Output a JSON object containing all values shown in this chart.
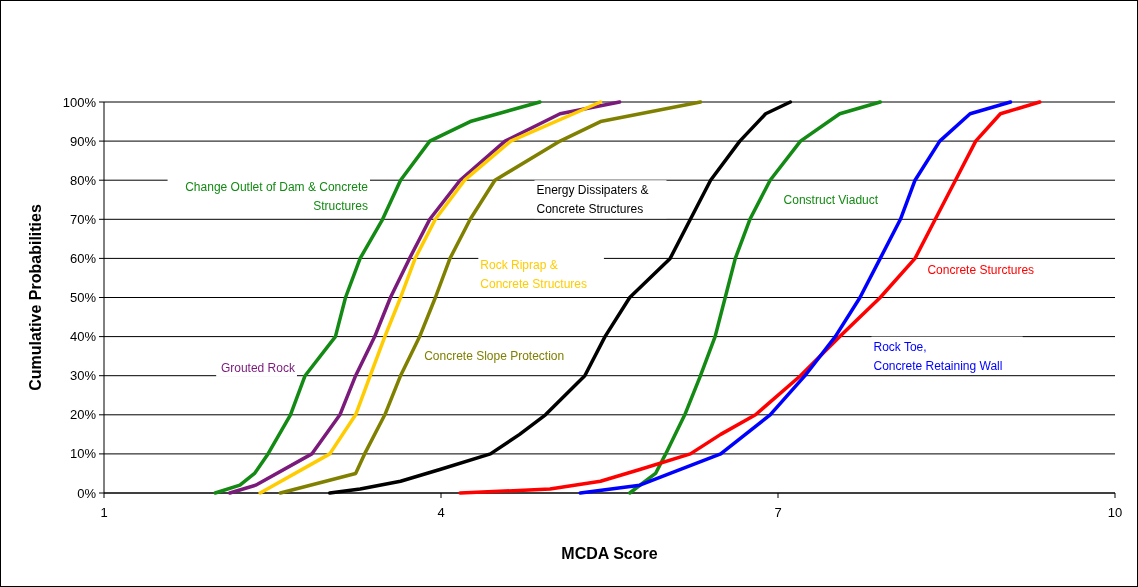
{
  "chart_data": {
    "type": "line",
    "xlabel": "MCDA Score",
    "ylabel": "Cumulative Probabilities",
    "xlim": [
      1,
      10
    ],
    "xticks": [
      1,
      4,
      7,
      10
    ],
    "ylim": [
      0,
      100
    ],
    "yticks": [
      {
        "value": 0,
        "label": "0%"
      },
      {
        "value": 10,
        "label": "10%"
      },
      {
        "value": 20,
        "label": "20%"
      },
      {
        "value": 30,
        "label": "30%"
      },
      {
        "value": 40,
        "label": "40%"
      },
      {
        "value": 50,
        "label": "50%"
      },
      {
        "value": 60,
        "label": "60%"
      },
      {
        "value": 70,
        "label": "70%"
      },
      {
        "value": 80,
        "label": "80%"
      },
      {
        "value": 90,
        "label": "90%"
      },
      {
        "value": 100,
        "label": "100%"
      }
    ],
    "grid": "y",
    "marker": "none",
    "line_style": "solid",
    "series": [
      {
        "name": "Change Outlet of Dam & Concrete Structures",
        "color": "#138a13",
        "x": [
          1.99,
          2.21,
          2.34,
          2.46,
          2.66,
          2.79,
          3.06,
          3.15,
          3.28,
          3.48,
          3.64,
          3.9,
          4.26,
          4.88
        ],
        "values": [
          0,
          2,
          5,
          10,
          20,
          30,
          40,
          50,
          60,
          70,
          80,
          90,
          95,
          100
        ]
      },
      {
        "name": "Grouted Rock",
        "color": "#7a1a7a",
        "x": [
          2.12,
          2.35,
          2.85,
          3.1,
          3.24,
          3.41,
          3.55,
          3.72,
          3.9,
          4.17,
          4.57,
          5.06,
          5.59
        ],
        "values": [
          0,
          2,
          10,
          20,
          30,
          40,
          50,
          60,
          70,
          80,
          90,
          97,
          100
        ]
      },
      {
        "name": "Rock Riprap & Concrete Structures",
        "color": "#ffcc00",
        "x": [
          2.39,
          3.01,
          3.24,
          3.37,
          3.5,
          3.64,
          3.77,
          3.95,
          4.21,
          4.62,
          5.42
        ],
        "values": [
          0,
          10,
          20,
          30,
          40,
          50,
          60,
          70,
          80,
          90,
          100
        ]
      },
      {
        "name": "Concrete Slope Protection",
        "color": "#808000",
        "x": [
          2.57,
          3.24,
          3.32,
          3.5,
          3.64,
          3.81,
          3.95,
          4.08,
          4.26,
          4.48,
          5.06,
          5.42,
          6.31
        ],
        "values": [
          0,
          5,
          10,
          20,
          30,
          40,
          50,
          60,
          70,
          80,
          90,
          95,
          100
        ]
      },
      {
        "name": "Energy Dissipaters & Concrete Structures",
        "color": "#000000",
        "x": [
          3.01,
          3.28,
          3.64,
          3.99,
          4.44,
          4.7,
          4.93,
          5.28,
          5.46,
          5.68,
          6.04,
          6.22,
          6.4,
          6.66,
          6.89,
          7.11
        ],
        "values": [
          0,
          1,
          3,
          6,
          10,
          15,
          20,
          30,
          40,
          50,
          60,
          70,
          80,
          90,
          97,
          100
        ]
      },
      {
        "name": "Construct Viaduct",
        "color": "#138a13",
        "x": [
          5.68,
          5.91,
          6,
          6.17,
          6.31,
          6.44,
          6.53,
          6.62,
          6.75,
          6.93,
          7.2,
          7.55,
          7.91
        ],
        "values": [
          0,
          5,
          10,
          20,
          30,
          40,
          50,
          60,
          70,
          80,
          90,
          97,
          100
        ]
      },
      {
        "name": "Concrete Sturctures",
        "color": "#ff0000",
        "x": [
          4.17,
          4.97,
          5.42,
          5.77,
          6.22,
          6.49,
          6.8,
          7.2,
          7.55,
          7.91,
          8.22,
          8.4,
          8.58,
          8.76,
          8.98,
          9.33
        ],
        "values": [
          0,
          1,
          3,
          6,
          10,
          15,
          20,
          30,
          40,
          50,
          60,
          70,
          80,
          90,
          97,
          100
        ]
      },
      {
        "name": "Rock Toe, Concrete Retaining Wall",
        "color": "#0000ff",
        "x": [
          5.24,
          5.77,
          6.04,
          6.49,
          6.93,
          7.24,
          7.51,
          7.73,
          7.91,
          8.09,
          8.22,
          8.44,
          8.71,
          9.07
        ],
        "values": [
          0,
          2,
          5,
          10,
          20,
          30,
          40,
          50,
          60,
          70,
          80,
          90,
          97,
          100
        ]
      }
    ]
  }
}
